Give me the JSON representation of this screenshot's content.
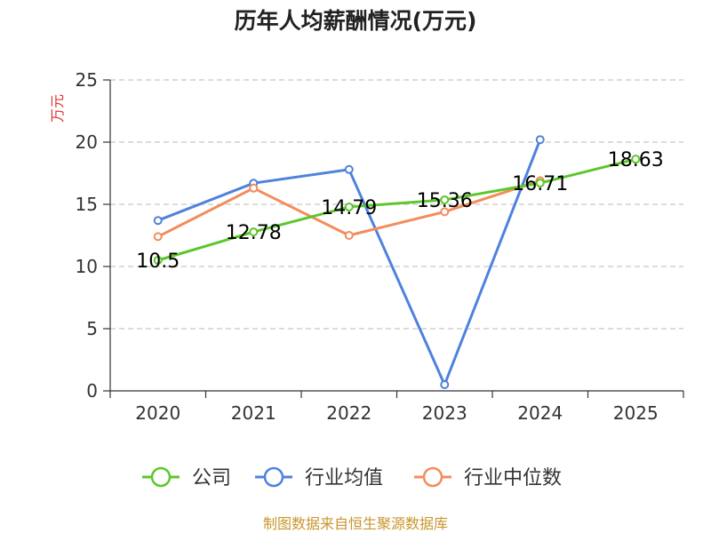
{
  "chart_data": {
    "type": "line",
    "title": "历年人均薪酬情况(万元)",
    "ylabel": "万元",
    "ylabel_color": "#e03030",
    "xlabel": "",
    "ylim": [
      0,
      25
    ],
    "yticks": [
      0,
      5,
      10,
      15,
      20,
      25
    ],
    "grid": true,
    "categories": [
      "2020",
      "2021",
      "2022",
      "2023",
      "2024",
      "2025"
    ],
    "series": [
      {
        "name": "公司",
        "color": "#5cc72a",
        "values": [
          10.5,
          12.78,
          14.79,
          15.36,
          16.71,
          18.63
        ],
        "labels": [
          "10.5",
          "12.78",
          "14.79",
          "15.36",
          "16.71",
          "18.63"
        ]
      },
      {
        "name": "行业均值",
        "color": "#4f82dc",
        "values": [
          13.7,
          16.7,
          17.8,
          0.5,
          20.2,
          null
        ]
      },
      {
        "name": "行业中位数",
        "color": "#f48c5c",
        "values": [
          12.4,
          16.3,
          12.5,
          14.4,
          16.9,
          null
        ]
      }
    ],
    "legend_position": "bottom-center",
    "source": "制图数据来自恒生聚源数据库",
    "source_color": "#c8962c"
  }
}
